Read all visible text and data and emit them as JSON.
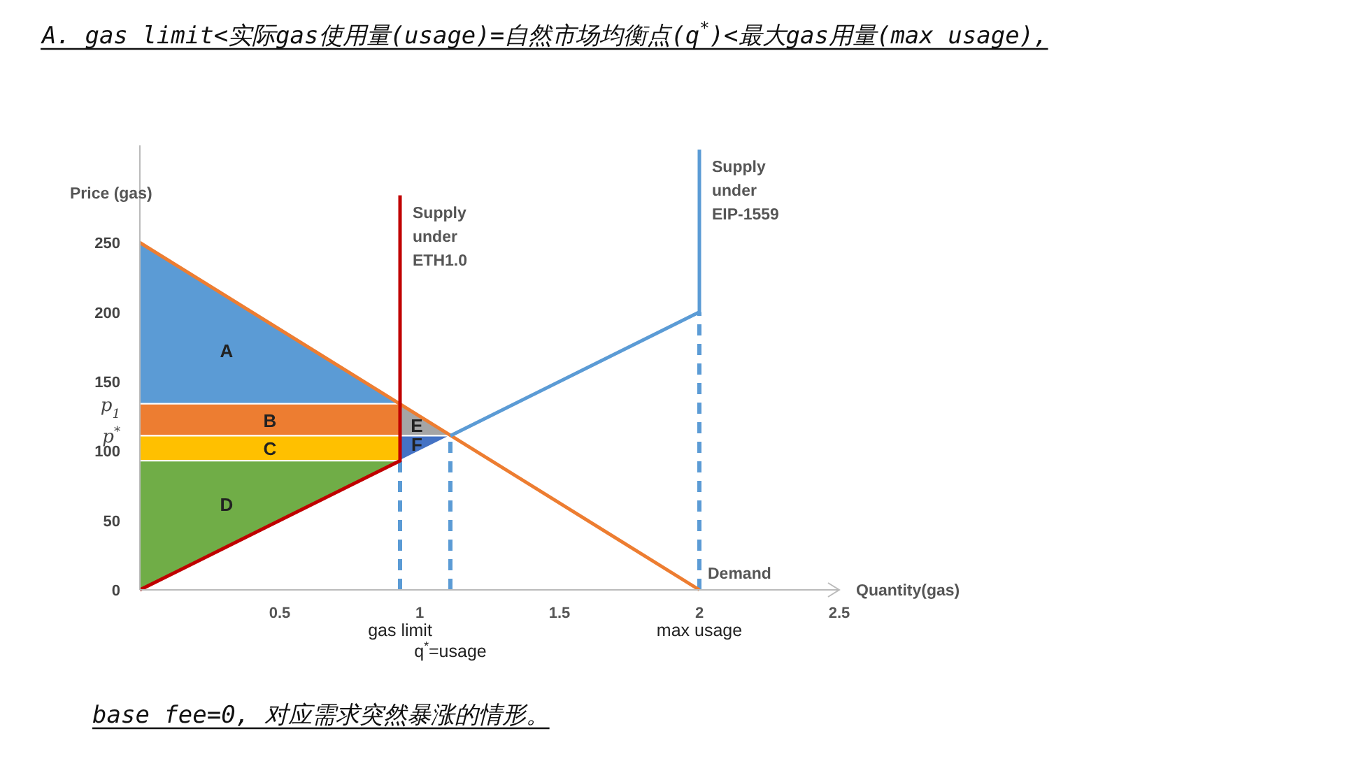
{
  "chart_data": {
    "type": "line",
    "title": "A.  gas limit<实际gas使用量(usage)=自然市场均衡点(q$^{*}$)<最大gas用量(max usage),",
    "xlabel": "Quantity(gas)",
    "ylabel": "Price (gas)",
    "xlim": [
      0,
      2.5
    ],
    "ylim": [
      0,
      320
    ],
    "xticks": [
      0.5,
      1,
      1.5,
      2,
      2.5
    ],
    "yticks": [
      0,
      50,
      100,
      150,
      200,
      250
    ],
    "grid": false,
    "series": [
      {
        "type": "area",
        "name": "A",
        "color": "#5b9bd5",
        "x": [
          0,
          0.93,
          0
        ],
        "values": [
          250,
          134,
          134
        ]
      },
      {
        "type": "area",
        "name": "B",
        "color": "#ed7d31",
        "x": [
          0,
          0.93,
          0.93,
          0
        ],
        "values": [
          134,
          134,
          111,
          111
        ]
      },
      {
        "type": "area",
        "name": "C",
        "color": "#ffc000",
        "x": [
          0,
          0.93,
          0.93,
          0
        ],
        "values": [
          111,
          111,
          93,
          93
        ]
      },
      {
        "type": "area",
        "name": "D",
        "color": "#70ad47",
        "x": [
          0,
          0.93,
          0
        ],
        "values": [
          0,
          93,
          93
        ]
      },
      {
        "type": "area",
        "name": "E",
        "color": "#a5a5a5",
        "x": [
          0.93,
          1.11,
          0.93
        ],
        "values": [
          134,
          111,
          111
        ]
      },
      {
        "type": "area",
        "name": "F",
        "color": "#4472c4",
        "x": [
          0.93,
          1.11,
          0.93
        ],
        "values": [
          111,
          111,
          93
        ]
      },
      {
        "line_style": "dashed",
        "color": "#5b9bd5",
        "x": [
          0.93,
          0.93
        ],
        "values": [
          0,
          93
        ]
      },
      {
        "line_style": "dashed",
        "color": "#5b9bd5",
        "x": [
          1.11,
          1.11
        ],
        "values": [
          0,
          111
        ]
      },
      {
        "line_style": "dashed",
        "color": "#5b9bd5",
        "x": [
          2,
          2
        ],
        "values": [
          0,
          200
        ]
      },
      {
        "name": "Demand",
        "color": "#ed7d31",
        "x": [
          0,
          2
        ],
        "values": [
          250,
          0
        ]
      },
      {
        "name": "Supply under ETH1.0",
        "color": "#c00000",
        "x": [
          0,
          0.93,
          0.93
        ],
        "values": [
          0,
          93,
          284
        ]
      },
      {
        "name": "Supply under EIP-1559",
        "color": "#5b9bd5",
        "x": [
          1.11,
          2,
          2
        ],
        "values": [
          111,
          200,
          317
        ]
      }
    ],
    "annotations": [
      {
        "text": "p$_{1}$",
        "x": 0,
        "y": 134
      },
      {
        "text": "p$^{*}$",
        "x": 0,
        "y": 111
      },
      {
        "text": "gas limit",
        "x": 0.93,
        "y": 0
      },
      {
        "text": "q$^{*}$=usage",
        "x": 1.11,
        "y": 0
      },
      {
        "text": "max usage",
        "x": 2,
        "y": 0
      },
      "base fee=0, 对应需求突然暴涨的情形。"
    ]
  }
}
